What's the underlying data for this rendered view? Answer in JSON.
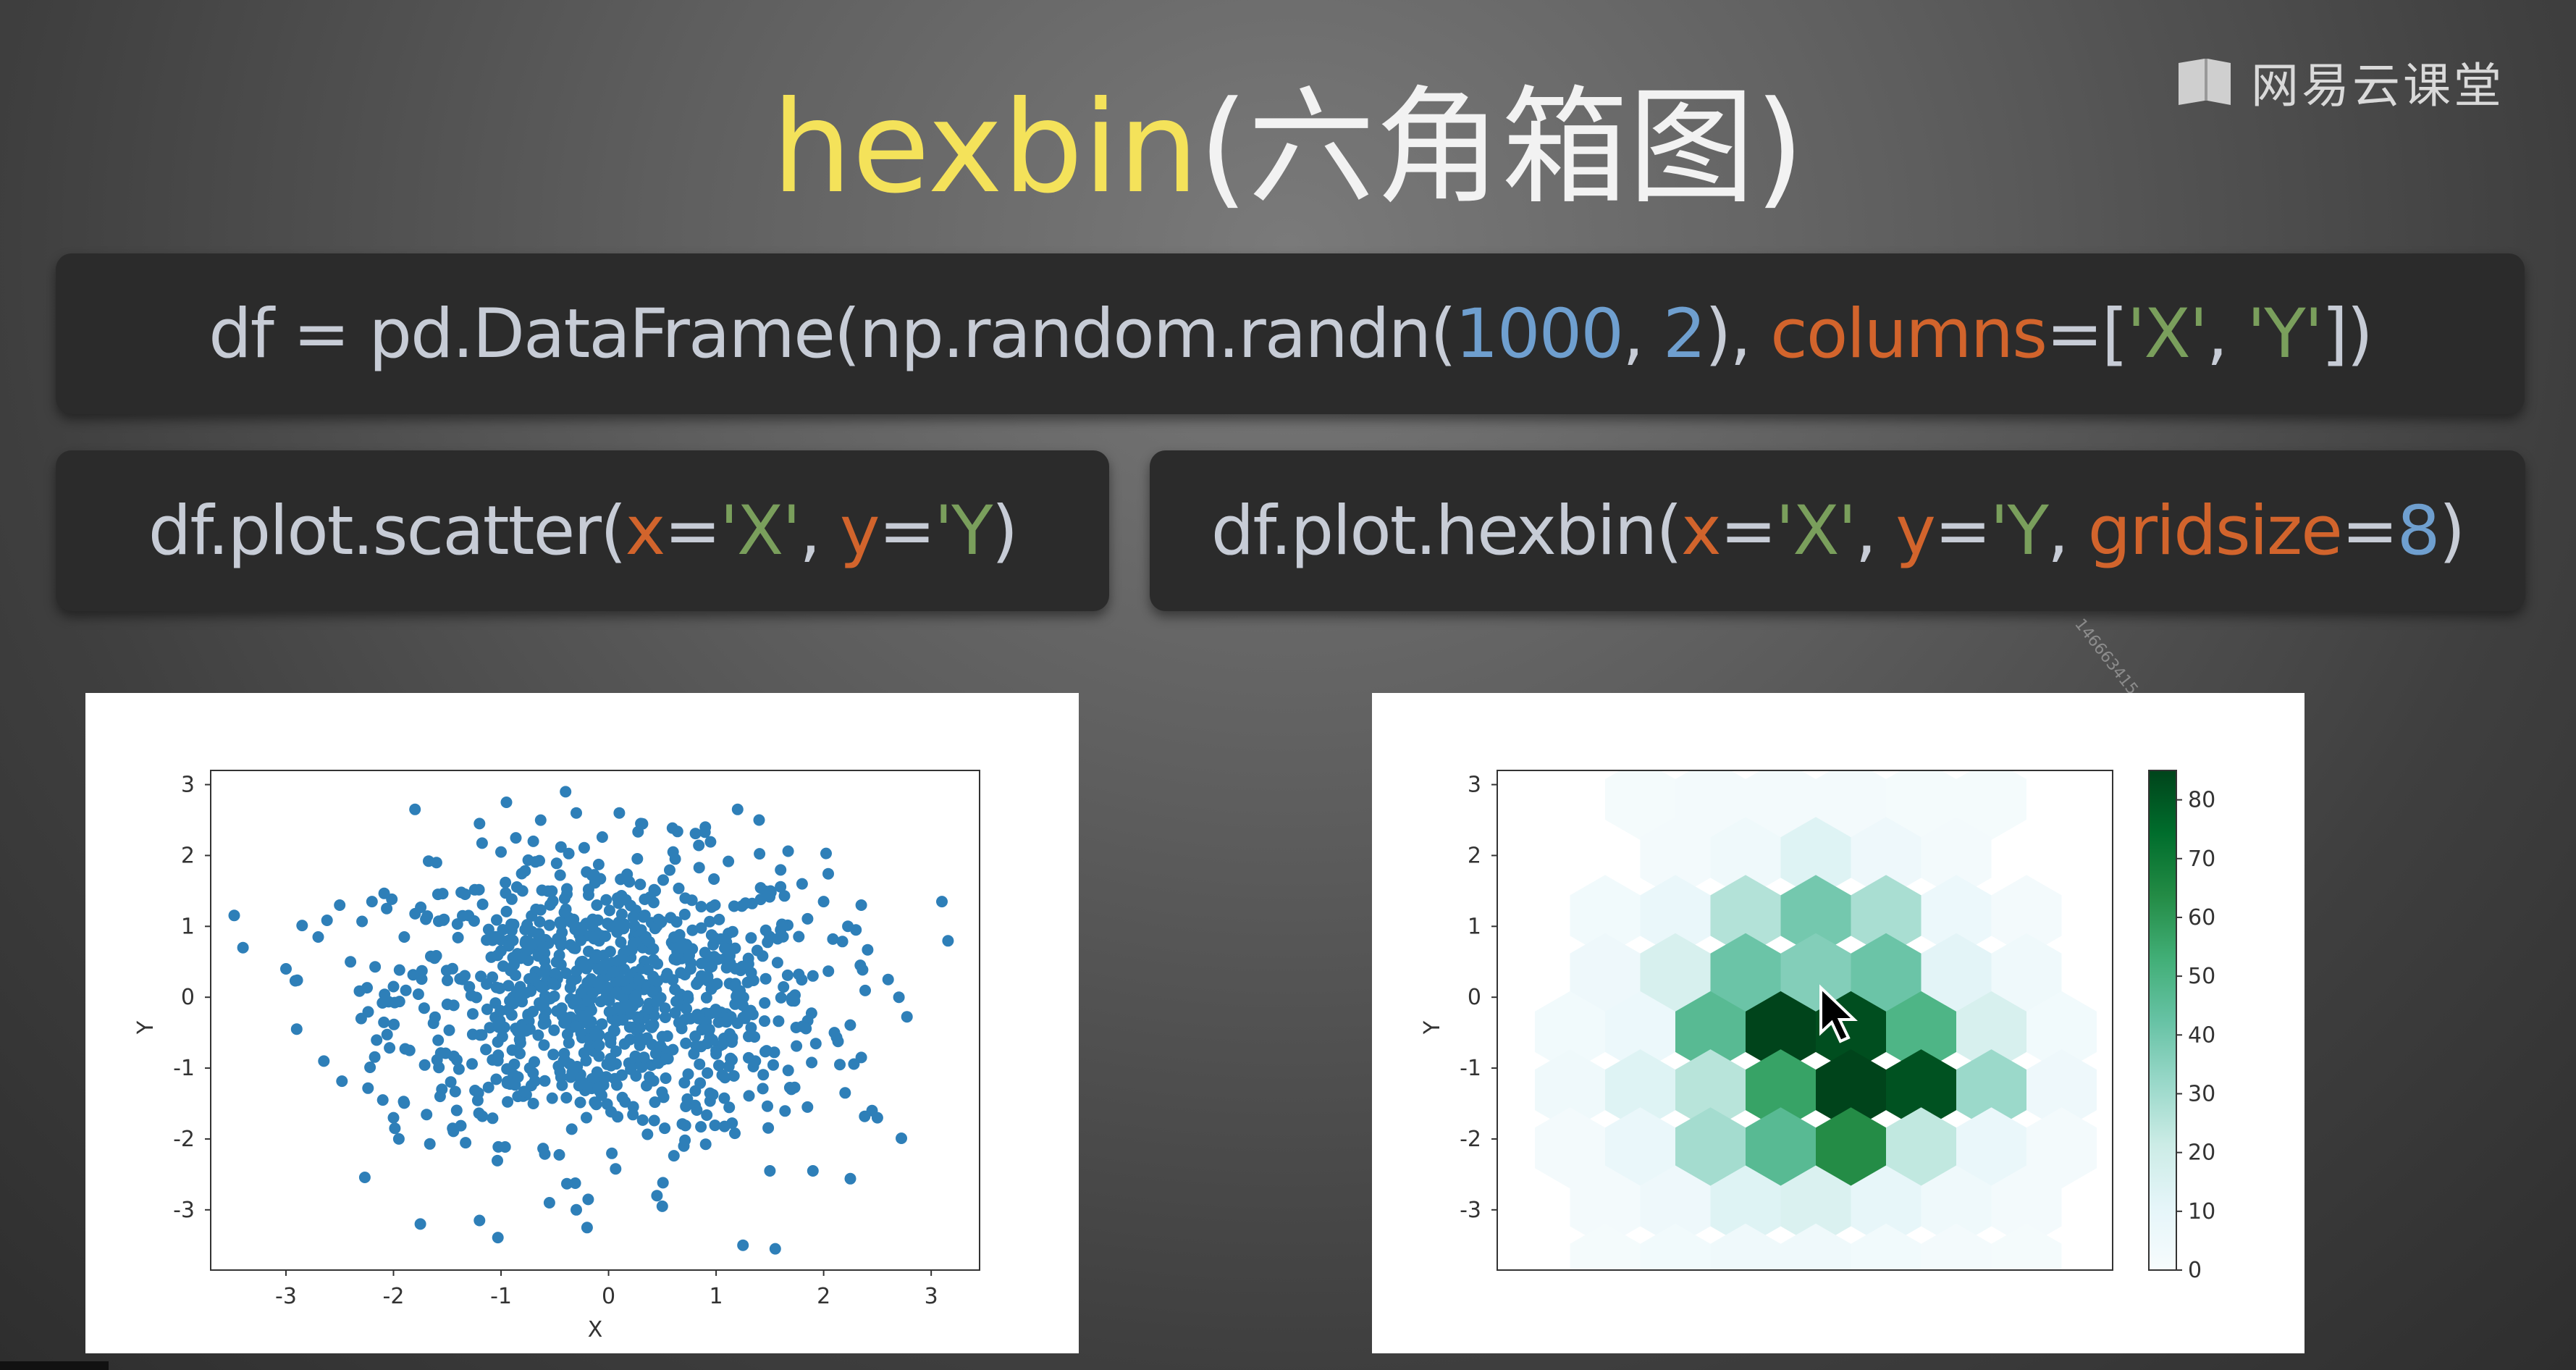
{
  "slide": {
    "title_main": "hexbin",
    "title_rest": "(六角箱图)",
    "brand": "网易云课堂",
    "watermark": "1466634154"
  },
  "code": {
    "line1": [
      {
        "t": "df = pd.DataFrame(np.random.randn(",
        "c": ""
      },
      {
        "t": "1000",
        "c": "tk-num"
      },
      {
        "t": ", ",
        "c": ""
      },
      {
        "t": "2",
        "c": "tk-num"
      },
      {
        "t": "), ",
        "c": ""
      },
      {
        "t": "columns",
        "c": "tk-kw"
      },
      {
        "t": "=[",
        "c": ""
      },
      {
        "t": "'X'",
        "c": "tk-str"
      },
      {
        "t": ", ",
        "c": ""
      },
      {
        "t": "'Y'",
        "c": "tk-str"
      },
      {
        "t": "])",
        "c": ""
      }
    ],
    "line2": [
      {
        "t": "df.plot.scatter(",
        "c": ""
      },
      {
        "t": "x",
        "c": "tk-kw"
      },
      {
        "t": "=",
        "c": ""
      },
      {
        "t": "'X'",
        "c": "tk-str"
      },
      {
        "t": ", ",
        "c": ""
      },
      {
        "t": "y",
        "c": "tk-kw"
      },
      {
        "t": "=",
        "c": ""
      },
      {
        "t": "'Y",
        "c": "tk-str"
      },
      {
        "t": ")",
        "c": ""
      }
    ],
    "line3": [
      {
        "t": "df.plot.hexbin(",
        "c": ""
      },
      {
        "t": "x",
        "c": "tk-kw"
      },
      {
        "t": "=",
        "c": ""
      },
      {
        "t": "'X'",
        "c": "tk-str"
      },
      {
        "t": ", ",
        "c": ""
      },
      {
        "t": "y",
        "c": "tk-kw"
      },
      {
        "t": "=",
        "c": ""
      },
      {
        "t": "'Y",
        "c": "tk-str"
      },
      {
        "t": ", ",
        "c": ""
      },
      {
        "t": "gridsize",
        "c": "tk-kw"
      },
      {
        "t": "=",
        "c": ""
      },
      {
        "t": "8",
        "c": "tk-num"
      },
      {
        "t": ")",
        "c": ""
      }
    ]
  },
  "colors": {
    "scatter_point": "#2e7fb8",
    "hex_colormap": [
      "#f7fcfd",
      "#e5f5f9",
      "#ccece6",
      "#99d8c9",
      "#66c2a4",
      "#41ae76",
      "#238b45",
      "#006d2c",
      "#00441b"
    ]
  },
  "chart_data": [
    {
      "type": "scatter",
      "title": "",
      "xlabel": "X",
      "ylabel": "Y",
      "xlim": [
        -3.7,
        3.45
      ],
      "ylim": [
        -3.85,
        3.2
      ],
      "xticks": [
        -3,
        -2,
        -1,
        0,
        1,
        2,
        3
      ],
      "yticks": [
        -3,
        -2,
        -1,
        0,
        1,
        2,
        3
      ],
      "n_points": 1000,
      "distribution": "standard normal in X and Y",
      "points": [
        [
          -3.4,
          0.7
        ],
        [
          -2.9,
          -0.45
        ],
        [
          -3.0,
          0.4
        ],
        [
          -2.7,
          0.85
        ],
        [
          -2.5,
          1.3
        ],
        [
          -2.4,
          0.5
        ],
        [
          -2.3,
          -0.3
        ],
        [
          -2.2,
          1.35
        ],
        [
          -2.1,
          -1.45
        ],
        [
          -2.0,
          -1.7
        ],
        [
          -2.0,
          0.15
        ],
        [
          -1.95,
          -2.0
        ],
        [
          -1.9,
          0.85
        ],
        [
          -1.85,
          -0.75
        ],
        [
          -1.8,
          2.65
        ],
        [
          -1.75,
          -3.2
        ],
        [
          -1.7,
          1.1
        ],
        [
          -1.6,
          1.9
        ],
        [
          -1.55,
          -1.3
        ],
        [
          -1.5,
          -0.1
        ],
        [
          -1.45,
          -1.85
        ],
        [
          -1.2,
          2.45
        ],
        [
          -1.2,
          -3.15
        ],
        [
          -1.0,
          2.05
        ],
        [
          -0.95,
          2.75
        ],
        [
          -0.9,
          -0.25
        ],
        [
          -0.8,
          1.5
        ],
        [
          -0.7,
          -1.5
        ],
        [
          -0.7,
          2.2
        ],
        [
          -0.55,
          -2.9
        ],
        [
          -0.4,
          2.9
        ],
        [
          -0.3,
          -3.0
        ],
        [
          -0.3,
          2.6
        ],
        [
          -0.2,
          -3.25
        ],
        [
          0.1,
          2.6
        ],
        [
          0.3,
          2.45
        ],
        [
          0.45,
          -2.8
        ],
        [
          0.5,
          -2.95
        ],
        [
          0.6,
          2.05
        ],
        [
          0.7,
          -2.1
        ],
        [
          0.9,
          2.4
        ],
        [
          1.0,
          -0.8
        ],
        [
          1.2,
          2.65
        ],
        [
          1.25,
          -3.5
        ],
        [
          1.4,
          2.5
        ],
        [
          1.5,
          -2.45
        ],
        [
          1.55,
          -3.55
        ],
        [
          1.6,
          0.95
        ],
        [
          1.7,
          -1.3
        ],
        [
          1.8,
          1.6
        ],
        [
          1.85,
          -1.55
        ],
        [
          1.9,
          0.3
        ],
        [
          1.9,
          -2.45
        ],
        [
          2.0,
          1.35
        ],
        [
          2.1,
          -0.5
        ],
        [
          2.2,
          -1.35
        ],
        [
          2.3,
          0.95
        ],
        [
          2.35,
          1.3
        ],
        [
          2.35,
          -0.85
        ],
        [
          2.45,
          -1.6
        ],
        [
          2.5,
          -1.7
        ],
        [
          2.6,
          0.25
        ],
        [
          2.7,
          0.0
        ],
        [
          3.1,
          1.35
        ]
      ]
    },
    {
      "type": "heatmap",
      "subtype": "hexbin",
      "title": "",
      "xlabel": "",
      "ylabel": "Y",
      "gridsize": 8,
      "yticks": [
        -3,
        -2,
        -1,
        0,
        1,
        2,
        3
      ],
      "ylim": [
        -3.85,
        3.2
      ],
      "colorbar": {
        "min": 0,
        "max": 85,
        "ticks": [
          0,
          10,
          20,
          30,
          40,
          50,
          60,
          70,
          80
        ],
        "colormap": "BuGn"
      },
      "cells_note": "counts per hexagon; row 0 = top",
      "rows": [
        [
          0,
          1,
          1,
          1,
          0,
          0
        ],
        [
          1,
          3,
          12,
          4,
          1
        ],
        [
          2,
          6,
          25,
          38,
          27,
          5,
          1
        ],
        [
          4,
          15,
          40,
          35,
          40,
          10,
          3
        ],
        [
          2,
          5,
          45,
          84,
          81,
          48,
          15,
          2
        ],
        [
          3,
          12,
          24,
          55,
          85,
          80,
          30,
          4
        ],
        [
          1,
          6,
          28,
          45,
          62,
          22,
          6,
          1
        ],
        [
          1,
          4,
          12,
          14,
          8,
          3,
          1
        ],
        [
          0,
          2,
          3,
          3,
          2,
          1,
          0
        ],
        [
          0,
          1,
          1,
          1,
          0,
          0
        ]
      ]
    }
  ]
}
